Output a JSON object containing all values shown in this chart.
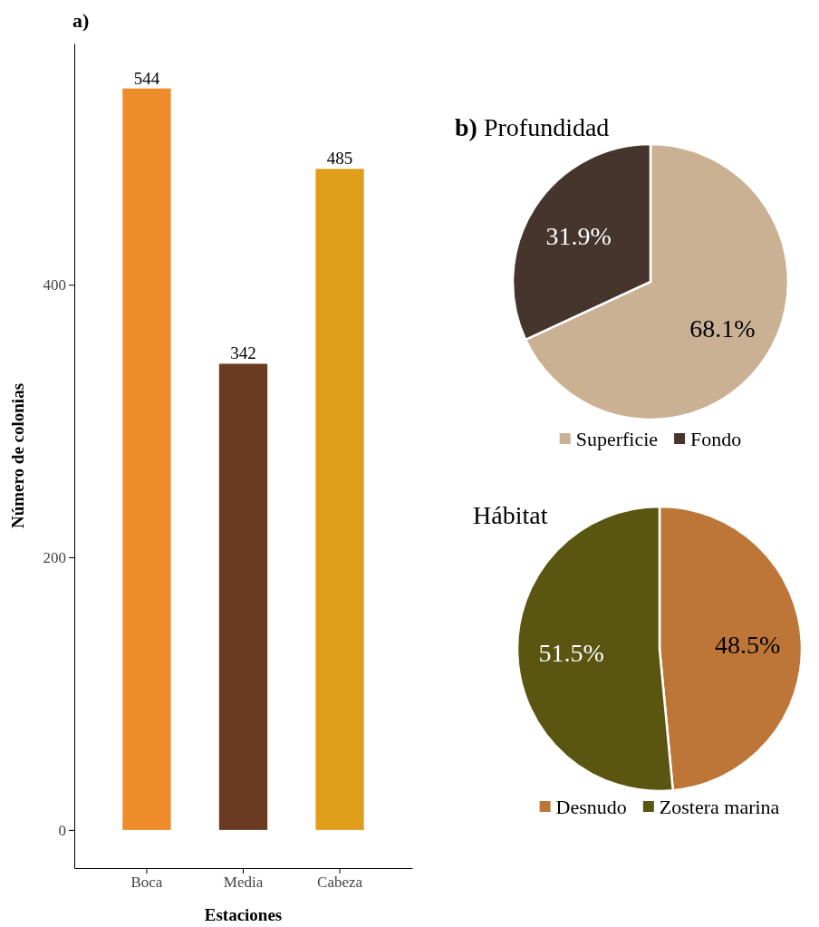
{
  "chart_data": [
    {
      "type": "bar",
      "title": "a)",
      "xlabel": "Estaciones",
      "ylabel": "Número de colonias",
      "categories": [
        "Boca",
        "Media",
        "Cabeza"
      ],
      "values": [
        544,
        342,
        485
      ],
      "colors": [
        "#ee8b2a",
        "#6b3a22",
        "#e09f1a"
      ],
      "ylim": [
        -28,
        577
      ],
      "yticks": [
        0,
        200,
        400
      ],
      "data_labels": true
    },
    {
      "type": "pie",
      "title": "b) Profundidad",
      "categories": [
        "Superficie",
        "Fondo"
      ],
      "values": [
        68.1,
        31.9
      ],
      "colors": [
        "#cbb194",
        "#45352c"
      ],
      "value_labels": [
        "68.1%",
        "31.9%"
      ],
      "legend": "bottom"
    },
    {
      "type": "pie",
      "title": "Hábitat",
      "categories": [
        "Desnudo",
        "Zostera marina"
      ],
      "values": [
        48.5,
        51.5
      ],
      "colors": [
        "#bd7637",
        "#5a5511"
      ],
      "value_labels": [
        "48.5%",
        "51.5%"
      ],
      "legend": "bottom"
    }
  ]
}
